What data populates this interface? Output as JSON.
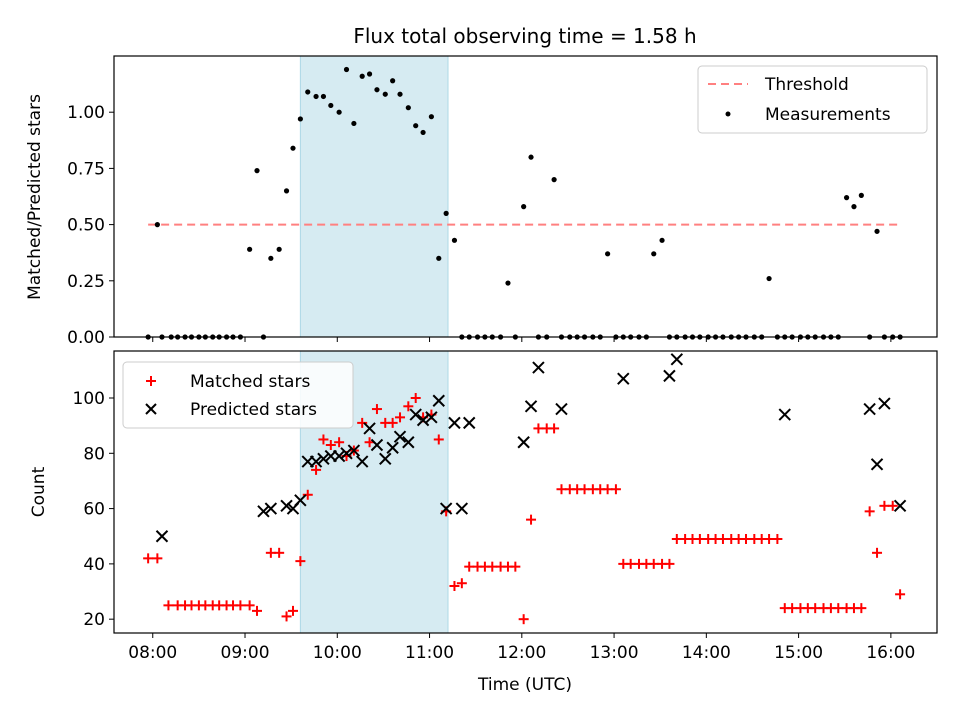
{
  "title": "Flux total observing time = 1.58 h",
  "chart_data": [
    {
      "type": "scatter",
      "ylabel": "Matched/Predicted stars",
      "ylim": [
        0,
        1.25
      ],
      "xlim": [
        7.58,
        16.5
      ],
      "yticks": [
        {
          "v": 0.0,
          "label": "0.00"
        },
        {
          "v": 0.25,
          "label": "0.25"
        },
        {
          "v": 0.5,
          "label": "0.50"
        },
        {
          "v": 0.75,
          "label": "0.75"
        },
        {
          "v": 1.0,
          "label": "1.00"
        }
      ],
      "shaded_interval": [
        9.6,
        11.2
      ],
      "legend_position": "top-right",
      "threshold": {
        "name": "Threshold",
        "value": 0.5,
        "x_range": [
          7.95,
          16.12
        ],
        "color": "#ff8080"
      },
      "measurements": {
        "name": "Measurements",
        "color": "#000000",
        "x": [
          7.95,
          8.05,
          8.1,
          8.2,
          8.27,
          8.35,
          8.42,
          8.5,
          8.57,
          8.65,
          8.72,
          8.8,
          8.87,
          8.95,
          9.05,
          9.13,
          9.2,
          9.28,
          9.37,
          9.45,
          9.52,
          9.6,
          9.68,
          9.77,
          9.85,
          9.93,
          10.02,
          10.1,
          10.18,
          10.27,
          10.35,
          10.43,
          10.52,
          10.6,
          10.68,
          10.77,
          10.85,
          10.93,
          11.02,
          11.1,
          11.18,
          11.27,
          11.35,
          11.43,
          11.52,
          11.6,
          11.68,
          11.77,
          11.85,
          11.93,
          12.02,
          12.1,
          12.18,
          12.27,
          12.35,
          12.43,
          12.52,
          12.6,
          12.68,
          12.77,
          12.85,
          12.93,
          13.02,
          13.1,
          13.18,
          13.27,
          13.35,
          13.43,
          13.52,
          13.6,
          13.68,
          13.77,
          13.85,
          13.93,
          14.02,
          14.1,
          14.18,
          14.27,
          14.35,
          14.43,
          14.52,
          14.6,
          14.68,
          14.77,
          14.85,
          14.93,
          15.02,
          15.1,
          15.18,
          15.27,
          15.35,
          15.43,
          15.52,
          15.6,
          15.68,
          15.77,
          15.85,
          15.93,
          16.02,
          16.1
        ],
        "y": [
          0.0,
          0.5,
          0.0,
          0.0,
          0.0,
          0.0,
          0.0,
          0.0,
          0.0,
          0.0,
          0.0,
          0.0,
          0.0,
          0.0,
          0.39,
          0.74,
          0.0,
          0.35,
          0.39,
          0.65,
          0.84,
          0.97,
          1.09,
          1.07,
          1.07,
          1.03,
          1.0,
          1.19,
          0.95,
          1.16,
          1.17,
          1.1,
          1.08,
          1.14,
          1.08,
          1.02,
          0.94,
          0.91,
          0.98,
          0.35,
          0.55,
          0.43,
          0.0,
          0.0,
          0.0,
          0.0,
          0.0,
          0.0,
          0.24,
          0.0,
          0.58,
          0.8,
          0.0,
          0.0,
          0.7,
          0.0,
          0.0,
          0.0,
          0.0,
          0.0,
          0.0,
          0.37,
          0.0,
          0.0,
          0.0,
          0.0,
          0.0,
          0.37,
          0.43,
          0.0,
          0.0,
          0.0,
          0.0,
          0.0,
          0.0,
          0.0,
          0.0,
          0.0,
          0.0,
          0.0,
          0.0,
          0.0,
          0.26,
          0.0,
          0.0,
          0.0,
          0.0,
          0.0,
          0.0,
          0.0,
          0.0,
          0.0,
          0.62,
          0.58,
          0.63,
          0.0,
          0.47,
          0.0,
          0.0,
          0.0
        ]
      }
    },
    {
      "type": "scatter",
      "xlabel": "Time (UTC)",
      "ylabel": "Count",
      "ylim": [
        15,
        117
      ],
      "xlim": [
        7.58,
        16.5
      ],
      "yticks": [
        {
          "v": 20,
          "label": "20"
        },
        {
          "v": 40,
          "label": "40"
        },
        {
          "v": 60,
          "label": "60"
        },
        {
          "v": 80,
          "label": "80"
        },
        {
          "v": 100,
          "label": "100"
        }
      ],
      "xticks": [
        {
          "v": 8,
          "label": "08:00"
        },
        {
          "v": 9,
          "label": "09:00"
        },
        {
          "v": 10,
          "label": "10:00"
        },
        {
          "v": 11,
          "label": "11:00"
        },
        {
          "v": 12,
          "label": "12:00"
        },
        {
          "v": 13,
          "label": "13:00"
        },
        {
          "v": 14,
          "label": "14:00"
        },
        {
          "v": 15,
          "label": "15:00"
        },
        {
          "v": 16,
          "label": "16:00"
        }
      ],
      "shaded_interval": [
        9.6,
        11.2
      ],
      "legend_position": "top-left",
      "series": [
        {
          "name": "Matched stars",
          "marker": "plus",
          "color": "#ff0000",
          "x": [
            7.95,
            8.05,
            8.17,
            8.27,
            8.35,
            8.42,
            8.5,
            8.57,
            8.65,
            8.72,
            8.8,
            8.87,
            8.95,
            9.05,
            9.13,
            9.28,
            9.37,
            9.45,
            9.52,
            9.6,
            9.68,
            9.77,
            9.85,
            9.93,
            10.02,
            10.1,
            10.18,
            10.27,
            10.35,
            10.43,
            10.52,
            10.6,
            10.68,
            10.77,
            10.85,
            10.93,
            11.02,
            11.1,
            11.18,
            11.27,
            11.35,
            11.43,
            11.52,
            11.6,
            11.68,
            11.77,
            11.85,
            11.93,
            12.02,
            12.1,
            12.18,
            12.27,
            12.35,
            12.43,
            12.52,
            12.6,
            12.68,
            12.77,
            12.85,
            12.93,
            13.02,
            13.1,
            13.18,
            13.27,
            13.35,
            13.43,
            13.52,
            13.6,
            13.68,
            13.77,
            13.85,
            13.93,
            14.02,
            14.1,
            14.18,
            14.27,
            14.35,
            14.43,
            14.52,
            14.6,
            14.68,
            14.77,
            14.85,
            14.93,
            15.02,
            15.1,
            15.18,
            15.27,
            15.35,
            15.43,
            15.52,
            15.6,
            15.68,
            15.77,
            15.85,
            15.93,
            16.02,
            16.1
          ],
          "y": [
            42,
            42,
            25,
            25,
            25,
            25,
            25,
            25,
            25,
            25,
            25,
            25,
            25,
            25,
            23,
            44,
            44,
            21,
            23,
            41,
            65,
            74,
            85,
            83,
            84,
            79,
            81,
            91,
            84,
            96,
            91,
            91,
            93,
            97,
            100,
            93,
            94,
            85,
            59,
            32,
            33,
            39,
            39,
            39,
            39,
            39,
            39,
            39,
            20,
            56,
            89,
            89,
            89,
            67,
            67,
            67,
            67,
            67,
            67,
            67,
            67,
            40,
            40,
            40,
            40,
            40,
            40,
            40,
            49,
            49,
            49,
            49,
            49,
            49,
            49,
            49,
            49,
            49,
            49,
            49,
            49,
            49,
            24,
            24,
            24,
            24,
            24,
            24,
            24,
            24,
            24,
            24,
            24,
            59,
            44,
            61,
            61,
            29
          ]
        },
        {
          "name": "Predicted stars",
          "marker": "x",
          "color": "#000000",
          "x": [
            8.1,
            9.2,
            9.28,
            9.45,
            9.52,
            9.6,
            9.68,
            9.77,
            9.85,
            9.93,
            10.02,
            10.1,
            10.18,
            10.27,
            10.35,
            10.43,
            10.52,
            10.6,
            10.68,
            10.77,
            10.85,
            10.93,
            11.02,
            11.1,
            11.18,
            11.27,
            11.35,
            11.43,
            12.02,
            12.1,
            12.18,
            12.43,
            13.1,
            13.6,
            13.68,
            14.85,
            15.77,
            15.85,
            15.93,
            16.1
          ],
          "y": [
            50,
            59,
            60,
            61,
            60,
            63,
            77,
            77,
            78,
            79,
            79,
            80,
            81,
            77,
            89,
            83,
            78,
            82,
            86,
            84,
            94,
            92,
            93,
            99,
            60,
            91,
            60,
            91,
            84,
            97,
            111,
            96,
            107,
            108,
            114,
            94,
            96,
            76,
            98,
            61
          ]
        }
      ]
    }
  ]
}
